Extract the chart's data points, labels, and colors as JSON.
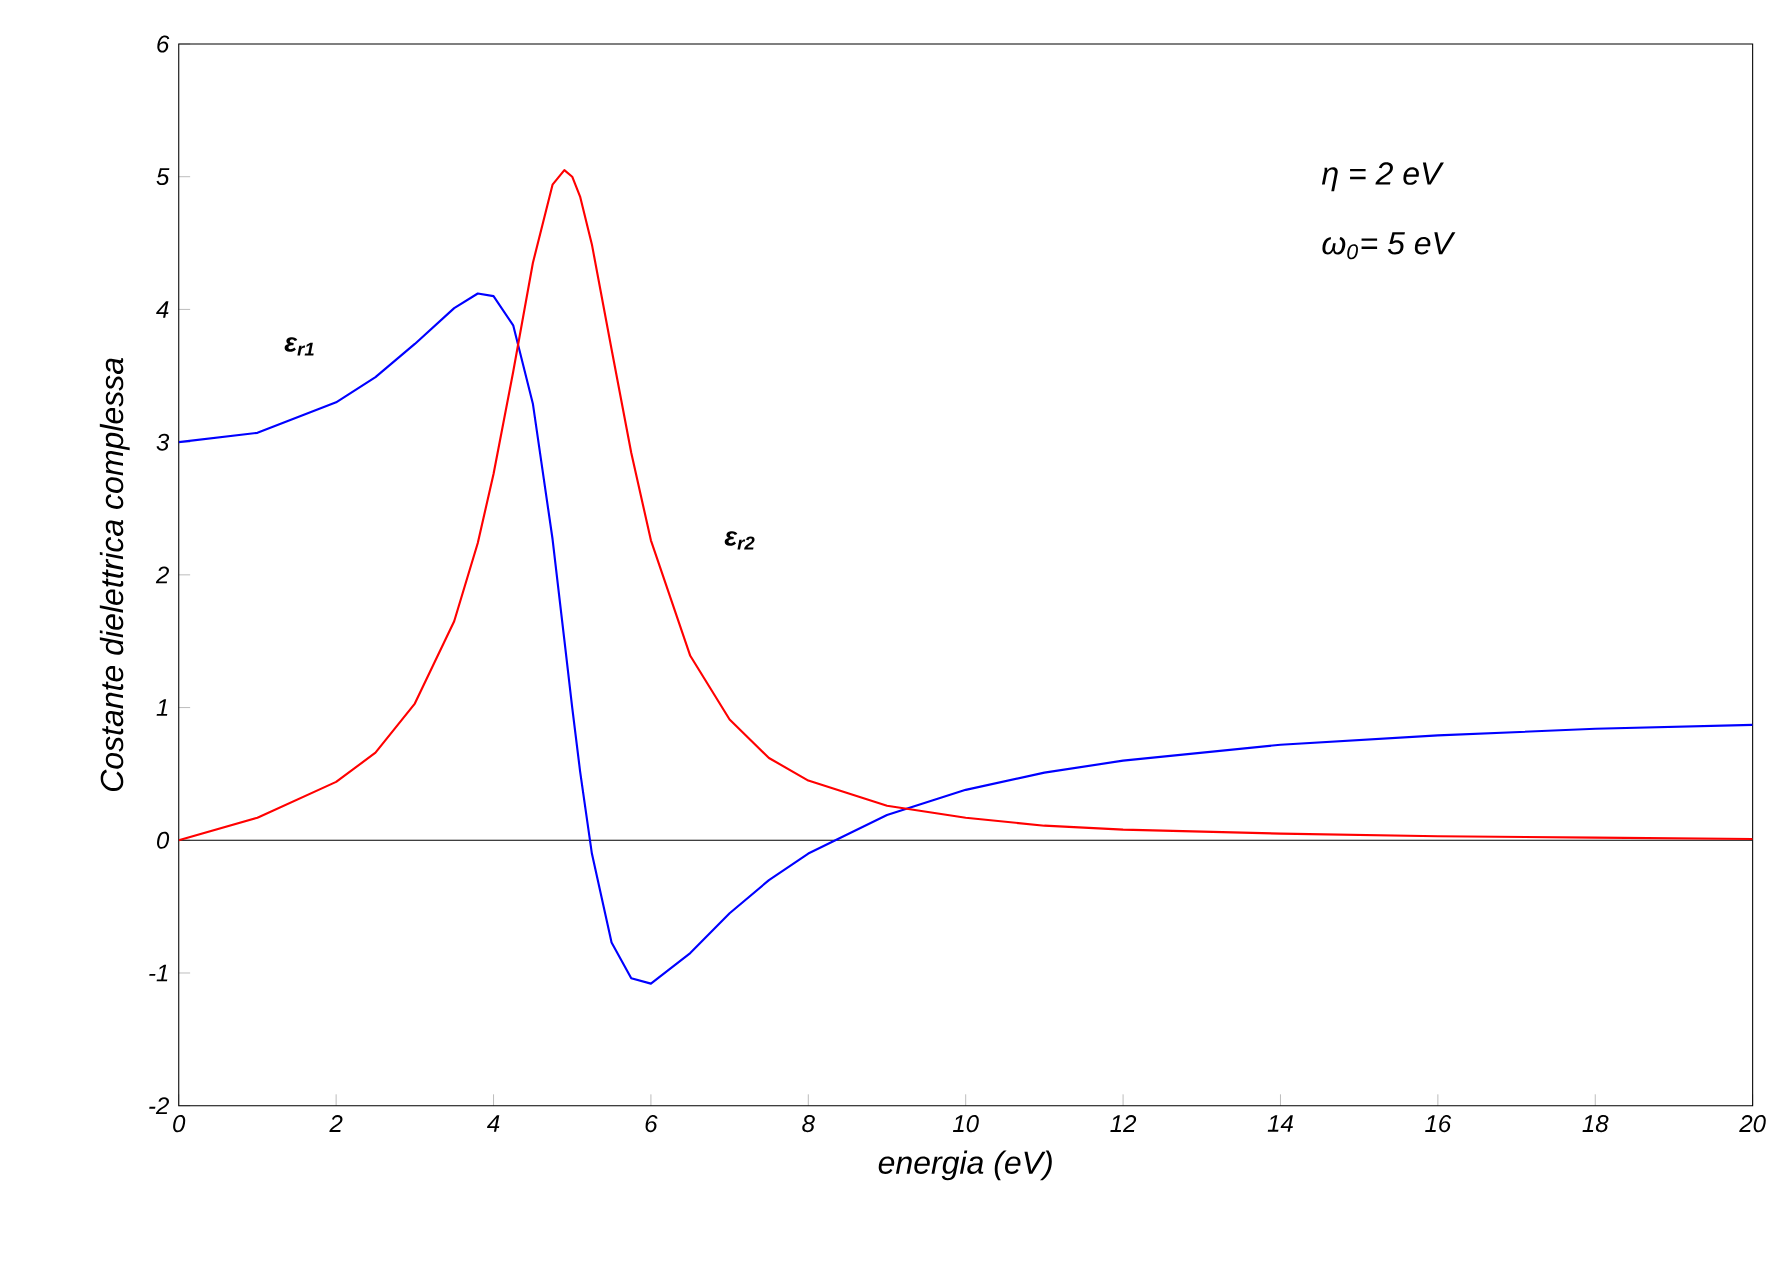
{
  "chart_data": {
    "type": "line",
    "xlabel": "energia (eV)",
    "ylabel": "Costante dielettrica complessa",
    "xlim": [
      0,
      20
    ],
    "ylim": [
      -2,
      6
    ],
    "xticks": [
      0,
      2,
      4,
      6,
      8,
      10,
      12,
      14,
      16,
      18,
      20
    ],
    "yticks": [
      -2,
      -1,
      0,
      1,
      2,
      3,
      4,
      5,
      6
    ],
    "grid": false,
    "annotations": [
      "η = 2 eV",
      "ω$_{0}$= 5 eV"
    ],
    "ref_lines": [
      {
        "axis": "y",
        "value": 0,
        "color": "#000000"
      }
    ],
    "series": [
      {
        "name": "ε$_{r1}$",
        "color": "#0000ff",
        "x": [
          0,
          1,
          2,
          2.5,
          3,
          3.5,
          3.8,
          4,
          4.25,
          4.5,
          4.75,
          4.9,
          5,
          5.1,
          5.25,
          5.5,
          5.75,
          6,
          6.5,
          7,
          7.5,
          8,
          9,
          10,
          11,
          12,
          14,
          16,
          18,
          20
        ],
        "values": [
          3,
          3.07,
          3.3,
          3.49,
          3.74,
          4.01,
          4.12,
          4.1,
          3.88,
          3.29,
          2.27,
          1.51,
          1,
          0.52,
          -0.1,
          -0.77,
          -1.04,
          -1.08,
          -0.85,
          -0.55,
          -0.3,
          -0.1,
          0.19,
          0.38,
          0.51,
          0.6,
          0.72,
          0.79,
          0.84,
          0.87
        ]
      },
      {
        "name": "ε$_{r2}$",
        "color": "#ff0000",
        "x": [
          0,
          1,
          2,
          2.5,
          3,
          3.5,
          3.8,
          4,
          4.25,
          4.5,
          4.75,
          4.9,
          5,
          5.1,
          5.25,
          5.5,
          5.75,
          6,
          6.5,
          7,
          7.5,
          8,
          9,
          10,
          11,
          12,
          14,
          16,
          18,
          20
        ],
        "values": [
          0,
          0.17,
          0.44,
          0.66,
          1.03,
          1.65,
          2.24,
          2.76,
          3.53,
          4.35,
          4.94,
          5.05,
          5,
          4.85,
          4.49,
          3.7,
          2.92,
          2.26,
          1.39,
          0.91,
          0.62,
          0.45,
          0.26,
          0.17,
          0.11,
          0.08,
          0.05,
          0.03,
          0.02,
          0.01
        ]
      }
    ]
  }
}
